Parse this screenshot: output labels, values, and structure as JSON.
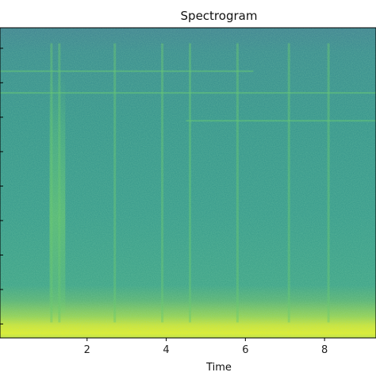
{
  "chart_data": {
    "type": "heatmap",
    "title": "Spectrogram",
    "xlabel": "Time",
    "ylabel": "",
    "xlim": [
      -0.2,
      9.3
    ],
    "ylim": [
      0,
      1
    ],
    "x_ticks": [
      2,
      4,
      6,
      8
    ],
    "x_tick_labels": [
      "2",
      "4",
      "6",
      "8"
    ],
    "y_tick_count": 9,
    "colormap": "viridis",
    "base_color": "#2f8f8a",
    "top_color": "#3b7f91",
    "low_band_color": "#b8e04a",
    "bottom_band_color": "#e3f024",
    "vertical_streaks_time": [
      1.1,
      1.3,
      2.7,
      3.9,
      4.6,
      5.8,
      7.1,
      8.1
    ],
    "horizontal_lines_level": [
      0.86,
      0.79,
      0.7
    ]
  }
}
